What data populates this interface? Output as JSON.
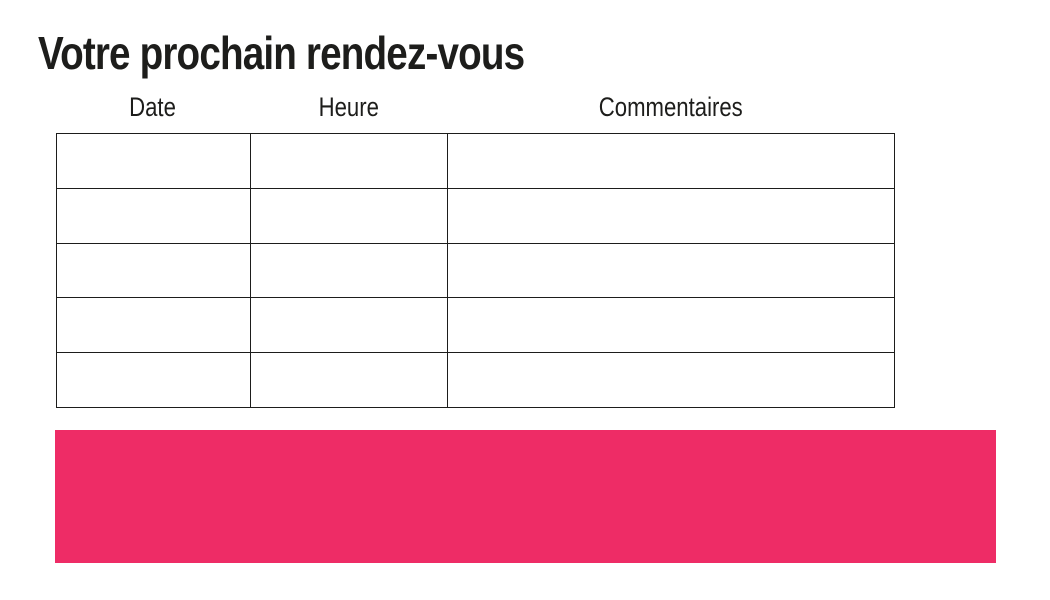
{
  "page": {
    "title": "Votre prochain rendez-vous"
  },
  "table": {
    "columns": [
      {
        "label": "Date"
      },
      {
        "label": "Heure"
      },
      {
        "label": "Commentaires"
      }
    ],
    "rows": [
      [
        "",
        "",
        ""
      ],
      [
        "",
        "",
        ""
      ],
      [
        "",
        "",
        ""
      ],
      [
        "",
        "",
        ""
      ],
      [
        "",
        "",
        ""
      ]
    ]
  },
  "banner": {
    "color": "#ee2c66"
  },
  "colors": {
    "text": "#1d1d1b",
    "table_border": "#1d1d1b",
    "background": "#ffffff",
    "accent_pink": "#ee2c66"
  }
}
